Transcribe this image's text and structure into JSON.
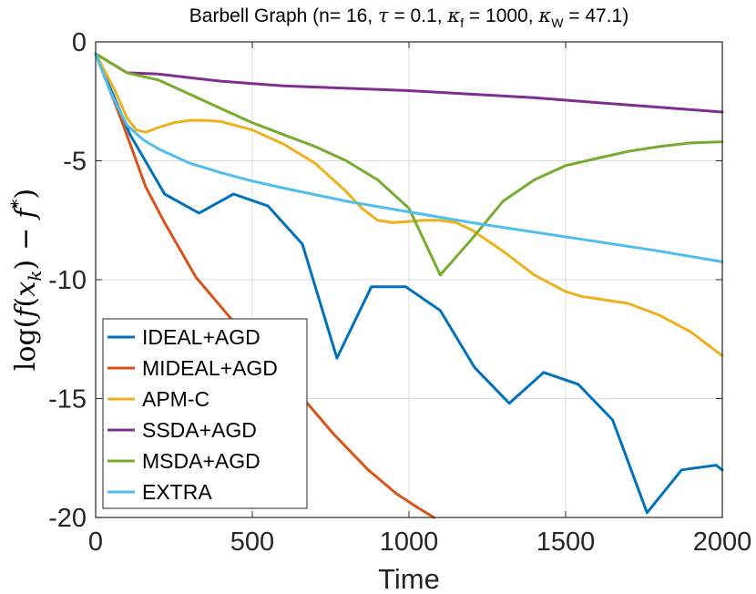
{
  "chart_data": {
    "type": "line",
    "title": "Barbell Graph (n= 16, τ = 0.1, κ_f = 1000, κ_W = 47.1)",
    "title_parts": {
      "prefix": "Barbell Graph (n= 16, ",
      "tau_symbol": "τ",
      "tau_value": " = 0.1, ",
      "kappa_symbol": "κ",
      "kf_sub": "f",
      "kf_value": " = 1000, ",
      "kw_sub": "W",
      "kw_value": " = 47.1)"
    },
    "xlabel": "Time",
    "ylabel": "log(f(x_k) − f*)",
    "ylabel_parts": {
      "log": "log",
      "open": "(",
      "f": "f",
      "open2": "(",
      "x": "x",
      "sub_k": "k",
      "close2": ")",
      "minus": "−",
      "f2": "f",
      "star": "*",
      "close": ")"
    },
    "xlim": [
      0,
      2000
    ],
    "ylim": [
      -20,
      0
    ],
    "xticks": [
      0,
      500,
      1000,
      1500,
      2000
    ],
    "yticks": [
      0,
      -5,
      -10,
      -15,
      -20
    ],
    "ytick_labels": [
      "0",
      "-5",
      "-10",
      "-15",
      "-20"
    ],
    "grid": true,
    "legend_position": "bottom-left",
    "series": [
      {
        "name": "IDEAL+AGD",
        "color": "#0072BD",
        "x": [
          0,
          110,
          220,
          330,
          440,
          550,
          660,
          770,
          880,
          990,
          1100,
          1210,
          1320,
          1430,
          1540,
          1650,
          1760,
          1870,
          1980,
          2000
        ],
        "y": [
          -0.5,
          -3.9,
          -6.4,
          -7.2,
          -6.4,
          -6.9,
          -8.5,
          -13.3,
          -10.3,
          -10.3,
          -11.3,
          -13.7,
          -15.2,
          -13.9,
          -14.4,
          -15.9,
          -19.8,
          -18.0,
          -17.8,
          -18.0
        ]
      },
      {
        "name": "MIDEAL+AGD",
        "color": "#D95319",
        "x": [
          0,
          80,
          160,
          220,
          320,
          430,
          540,
          650,
          760,
          870,
          960,
          1030,
          1080
        ],
        "y": [
          -0.5,
          -3.2,
          -6.1,
          -7.6,
          -9.9,
          -11.6,
          -13.1,
          -14.8,
          -16.5,
          -18.0,
          -19.0,
          -19.6,
          -20.0
        ]
      },
      {
        "name": "APM-C",
        "color": "#EDB120",
        "x": [
          0,
          60,
          100,
          130,
          160,
          200,
          250,
          300,
          350,
          400,
          500,
          600,
          700,
          800,
          850,
          900,
          950,
          1000,
          1050,
          1100,
          1150,
          1200,
          1300,
          1400,
          1500,
          1550,
          1600,
          1700,
          1800,
          1900,
          1950,
          2000
        ],
        "y": [
          -0.5,
          -2.0,
          -3.2,
          -3.7,
          -3.8,
          -3.6,
          -3.4,
          -3.3,
          -3.3,
          -3.35,
          -3.7,
          -4.3,
          -5.1,
          -6.3,
          -7.0,
          -7.5,
          -7.6,
          -7.55,
          -7.5,
          -7.5,
          -7.6,
          -7.9,
          -8.8,
          -9.8,
          -10.5,
          -10.7,
          -10.8,
          -11.0,
          -11.5,
          -12.2,
          -12.7,
          -13.2
        ]
      },
      {
        "name": "SSDA+AGD",
        "color": "#7E2F8E",
        "x": [
          0,
          100,
          200,
          300,
          400,
          500,
          600,
          800,
          1000,
          1200,
          1400,
          1600,
          1800,
          2000
        ],
        "y": [
          -0.5,
          -1.3,
          -1.35,
          -1.5,
          -1.65,
          -1.75,
          -1.85,
          -1.95,
          -2.05,
          -2.2,
          -2.35,
          -2.55,
          -2.75,
          -2.95
        ]
      },
      {
        "name": "MSDA+AGD",
        "color": "#77AC30",
        "x": [
          0,
          100,
          200,
          300,
          400,
          500,
          600,
          700,
          800,
          900,
          1000,
          1100,
          1200,
          1300,
          1400,
          1500,
          1600,
          1700,
          1800,
          1900,
          2000
        ],
        "y": [
          -0.5,
          -1.3,
          -1.6,
          -2.2,
          -2.8,
          -3.4,
          -3.9,
          -4.4,
          -5.0,
          -5.8,
          -7.0,
          -9.8,
          -8.3,
          -6.7,
          -5.8,
          -5.2,
          -4.9,
          -4.6,
          -4.4,
          -4.25,
          -4.2
        ]
      },
      {
        "name": "EXTRA",
        "color": "#4DBEEE",
        "x": [
          0,
          50,
          100,
          150,
          200,
          300,
          400,
          500,
          600,
          800,
          1000,
          1200,
          1400,
          1600,
          1800,
          2000
        ],
        "y": [
          -0.5,
          -2.2,
          -3.5,
          -4.1,
          -4.5,
          -5.1,
          -5.5,
          -5.85,
          -6.15,
          -6.7,
          -7.15,
          -7.6,
          -8.0,
          -8.4,
          -8.8,
          -9.25
        ]
      }
    ]
  }
}
